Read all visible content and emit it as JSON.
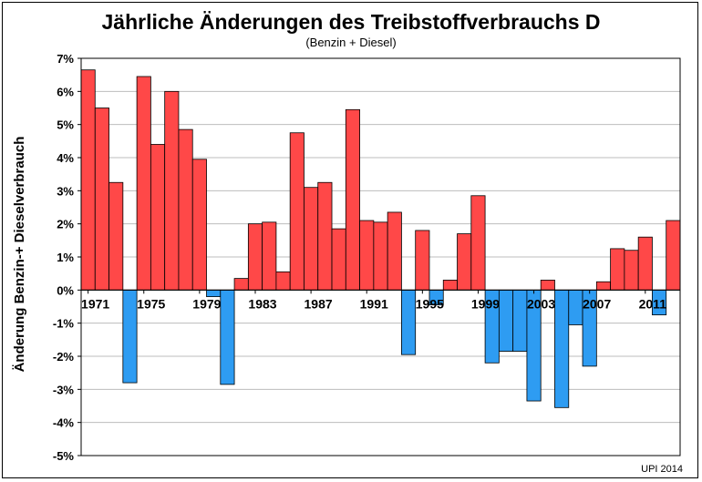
{
  "chart_data": {
    "type": "bar",
    "title": "Jährliche Änderungen des Treibstoffverbrauchs D",
    "subtitle": "(Benzin + Diesel)",
    "xlabel": "",
    "ylabel": "Änderung Benzin-+ Dieselverbrauch",
    "ylim": [
      -5,
      7
    ],
    "yticks": [
      "7%",
      "6%",
      "5%",
      "4%",
      "3%",
      "2%",
      "1%",
      "0%",
      "-1%",
      "-2%",
      "-3%",
      "-4%",
      "-5%"
    ],
    "xtick_labels": [
      "1971",
      "1975",
      "1979",
      "1983",
      "1987",
      "1991",
      "1995",
      "1999",
      "2003",
      "2007",
      "2011"
    ],
    "grid": true,
    "positive_color": "#FF4848",
    "negative_color": "#2E9CF2",
    "categories": [
      1971,
      1972,
      1973,
      1974,
      1975,
      1976,
      1977,
      1978,
      1979,
      1980,
      1981,
      1982,
      1983,
      1984,
      1985,
      1986,
      1987,
      1988,
      1989,
      1990,
      1991,
      1992,
      1993,
      1994,
      1995,
      1996,
      1997,
      1998,
      1999,
      2000,
      2001,
      2002,
      2003,
      2004,
      2005,
      2006,
      2007,
      2008,
      2009,
      2010,
      2011,
      2012,
      2013
    ],
    "values": [
      6.65,
      5.5,
      3.25,
      -2.8,
      6.45,
      4.4,
      6.0,
      4.85,
      3.95,
      -0.2,
      -2.85,
      0.35,
      2.0,
      2.05,
      0.55,
      4.75,
      3.1,
      3.25,
      1.85,
      5.45,
      2.1,
      2.05,
      2.35,
      -1.95,
      1.8,
      -0.45,
      0.3,
      1.7,
      2.85,
      -2.2,
      -1.85,
      -1.85,
      -3.35,
      0.3,
      -3.55,
      -1.05,
      -2.3,
      0.25,
      1.25,
      1.2,
      1.6,
      -0.75,
      2.1
    ]
  },
  "credit": "UPI 2014"
}
